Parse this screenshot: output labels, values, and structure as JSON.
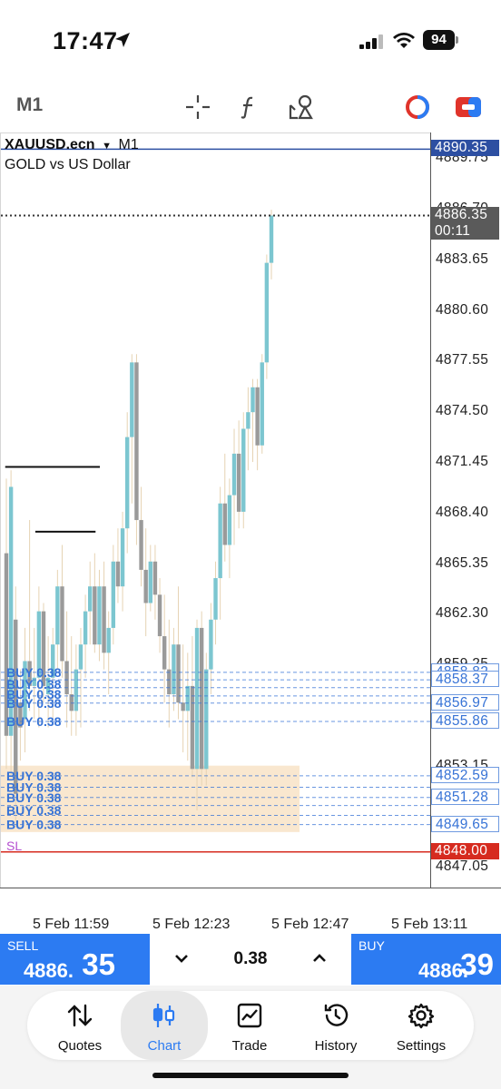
{
  "status_bar": {
    "time": "17:47",
    "battery": "94"
  },
  "toolbar": {
    "timeframe": "M1",
    "crosshair_icon": "crosshair-icon",
    "indicator_icon": "function-icon",
    "objects_icon": "shapes-icon",
    "account_icon": "account-circle-icon",
    "toggle_icon": "toggle-icon"
  },
  "chart": {
    "symbol": "XAUUSD.ecn",
    "timeframe": "M1",
    "description": "GOLD vs US Dollar",
    "price_levels": [
      "4889.75",
      "4886.70",
      "4883.65",
      "4880.60",
      "4877.55",
      "4874.50",
      "4871.45",
      "4868.40",
      "4865.35",
      "4862.30",
      "4859.25",
      "4853.15",
      "4847.05"
    ],
    "tags": {
      "top_line": "4890.35",
      "bid": "4886.35",
      "countdown": "00:11",
      "order_a": "4858.82",
      "order_b": "4858.37",
      "order_c": "4856.97",
      "order_d": "4855.86",
      "order_e": "4852.59",
      "order_f": "4851.28",
      "order_g": "4849.65",
      "sl": "4848.00"
    },
    "order_labels": [
      "BUY 0.38",
      "BUY 0.38",
      "BUY 0.38",
      "BUY 0.38",
      "BUY 0.38"
    ],
    "sl_label": "SL",
    "time_labels": [
      "5 Feb 11:59",
      "5 Feb 12:23",
      "5 Feb 12:47",
      "5 Feb 13:11"
    ],
    "colors": {
      "bull": "#7cc6d0",
      "bear": "#9a9a9a",
      "order": "#3773d6",
      "sl": "#d62b1f",
      "zone": "#f8e3c7"
    }
  },
  "chart_data": {
    "type": "candlestick",
    "ylim": [
      4845.8,
      4891.3
    ],
    "candles": [
      [
        4866.0,
        4870.5,
        4853.0,
        4855.0
      ],
      [
        4855.0,
        4871.0,
        4852.5,
        4870.0
      ],
      [
        4862.0,
        4864.0,
        4849.5,
        4851.5
      ],
      [
        4857.0,
        4859.0,
        4853.5,
        4855.5
      ],
      [
        4856.0,
        4861.5,
        4854.0,
        4859.5
      ],
      [
        4859.5,
        4868.0,
        4856.5,
        4858.0
      ],
      [
        4858.0,
        4861.5,
        4856.0,
        4858.5
      ],
      [
        4858.5,
        4864.0,
        4855.5,
        4862.5
      ],
      [
        4862.5,
        4863.0,
        4857.0,
        4858.0
      ],
      [
        4857.5,
        4861.0,
        4855.5,
        4858.5
      ],
      [
        4858.5,
        4861.5,
        4856.0,
        4860.5
      ],
      [
        4860.5,
        4865.0,
        4859.0,
        4864.0
      ],
      [
        4864.0,
        4866.5,
        4858.5,
        4859.5
      ],
      [
        4859.5,
        4862.5,
        4855.5,
        4857.5
      ],
      [
        4857.5,
        4861.0,
        4855.0,
        4856.5
      ],
      [
        4856.5,
        4860.5,
        4855.0,
        4859.0
      ],
      [
        4859.0,
        4861.5,
        4855.5,
        4860.5
      ],
      [
        4860.5,
        4863.5,
        4858.5,
        4862.5
      ],
      [
        4862.5,
        4865.5,
        4860.5,
        4864.0
      ],
      [
        4864.0,
        4866.0,
        4860.0,
        4860.5
      ],
      [
        4860.5,
        4865.0,
        4859.5,
        4864.0
      ],
      [
        4864.0,
        4865.5,
        4859.0,
        4860.0
      ],
      [
        4860.0,
        4862.5,
        4857.5,
        4861.5
      ],
      [
        4861.5,
        4866.5,
        4860.5,
        4865.5
      ],
      [
        4865.5,
        4867.5,
        4863.0,
        4864.0
      ],
      [
        4864.0,
        4868.5,
        4862.5,
        4867.5
      ],
      [
        4867.5,
        4874.5,
        4866.0,
        4873.0
      ],
      [
        4873.0,
        4878.0,
        4869.0,
        4877.5
      ],
      [
        4877.5,
        4878.0,
        4866.5,
        4868.0
      ],
      [
        4868.0,
        4870.0,
        4864.0,
        4865.0
      ],
      [
        4865.0,
        4867.5,
        4861.0,
        4863.0
      ],
      [
        4863.0,
        4866.5,
        4862.5,
        4865.5
      ],
      [
        4865.5,
        4866.5,
        4862.0,
        4863.5
      ],
      [
        4863.5,
        4864.5,
        4860.0,
        4861.0
      ],
      [
        4861.0,
        4863.5,
        4857.0,
        4859.0
      ],
      [
        4859.0,
        4862.0,
        4855.5,
        4857.5
      ],
      [
        4857.5,
        4861.5,
        4856.5,
        4860.5
      ],
      [
        4860.5,
        4864.0,
        4856.0,
        4857.0
      ],
      [
        4857.0,
        4860.5,
        4854.0,
        4856.5
      ],
      [
        4856.5,
        4860.0,
        4853.5,
        4858.0
      ],
      [
        4858.0,
        4861.0,
        4852.5,
        4853.0
      ],
      [
        4853.0,
        4862.0,
        4850.5,
        4861.5
      ],
      [
        4861.5,
        4862.5,
        4852.0,
        4853.0
      ],
      [
        4853.0,
        4860.0,
        4852.0,
        4859.0
      ],
      [
        4859.0,
        4863.0,
        4857.5,
        4862.0
      ],
      [
        4862.0,
        4865.5,
        4860.5,
        4864.5
      ],
      [
        4864.5,
        4870.0,
        4862.0,
        4869.0
      ],
      [
        4869.0,
        4872.0,
        4865.5,
        4866.5
      ],
      [
        4866.5,
        4870.5,
        4864.5,
        4869.5
      ],
      [
        4869.5,
        4873.5,
        4866.5,
        4872.0
      ],
      [
        4872.0,
        4874.0,
        4867.5,
        4868.5
      ],
      [
        4868.5,
        4874.5,
        4867.5,
        4873.5
      ],
      [
        4873.5,
        4876.0,
        4871.0,
        4874.5
      ],
      [
        4874.5,
        4876.5,
        4871.5,
        4876.0
      ],
      [
        4876.0,
        4876.5,
        4871.0,
        4872.5
      ],
      [
        4872.5,
        4878.0,
        4872.0,
        4877.5
      ],
      [
        4877.5,
        4884.0,
        4876.5,
        4883.5
      ],
      [
        4883.5,
        4886.7,
        4882.5,
        4886.35
      ]
    ],
    "black_lines": [
      [
        4871.2,
        0.01,
        0.23
      ],
      [
        4867.3,
        0.08,
        0.22
      ]
    ],
    "order_levels": [
      4858.82,
      4858.37,
      4857.9,
      4857.4,
      4856.97,
      4855.86,
      4852.59,
      4851.9,
      4851.28,
      4850.8,
      4850.2,
      4849.65
    ],
    "sl_level": 4848.0,
    "zone": [
      4853.2,
      4849.2
    ]
  },
  "trade": {
    "sell_label": "SELL",
    "sell_price_main": "4886.",
    "sell_price_big": "35",
    "buy_label": "BUY",
    "buy_price_main": "4886.",
    "buy_price_big": "39",
    "lot": "0.38"
  },
  "nav": {
    "items": [
      {
        "label": "Quotes",
        "icon": "sort-arrows-icon"
      },
      {
        "label": "Chart",
        "icon": "candles-icon"
      },
      {
        "label": "Trade",
        "icon": "trend-chart-icon"
      },
      {
        "label": "History",
        "icon": "history-icon"
      },
      {
        "label": "Settings",
        "icon": "gear-icon"
      }
    ]
  }
}
